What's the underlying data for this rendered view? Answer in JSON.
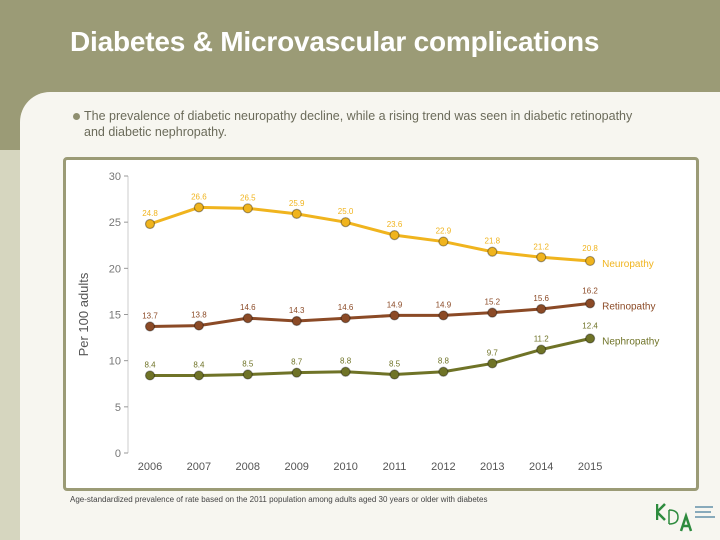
{
  "slide": {
    "title": "Diabetes & Microvascular complications",
    "bullet": "The prevalence of diabetic neuropathy decline, while a rising trend was seen in diabetic retinopathy and diabetic nephropathy.",
    "footnote": "Age-standardized prevalence of rate based on the 2011 population among adults aged 30 years or older with diabetes",
    "logo_text": "KDA Korean Diabetes Association"
  },
  "chart_data": {
    "type": "line",
    "ylabel": "Per 100 adults",
    "xlabel": "",
    "ylim": [
      0,
      30
    ],
    "yticks": [
      "0",
      "5",
      "10",
      "15",
      "20",
      "25",
      "30"
    ],
    "categories": [
      "2006",
      "2007",
      "2008",
      "2009",
      "2010",
      "2011",
      "2012",
      "2013",
      "2014",
      "2015"
    ],
    "grid": false,
    "legend": "inline-right",
    "series": [
      {
        "name": "Neuropathy",
        "color": "#f0b41e",
        "values": [
          24.8,
          26.6,
          26.5,
          25.9,
          25.0,
          23.6,
          22.9,
          21.8,
          21.2,
          20.8
        ]
      },
      {
        "name": "Retinopathy",
        "color": "#8b4a26",
        "values": [
          13.7,
          13.8,
          14.6,
          14.3,
          14.6,
          14.9,
          14.9,
          15.2,
          15.6,
          16.2
        ]
      },
      {
        "name": "Nephropathy",
        "color": "#6f7327",
        "values": [
          8.4,
          8.4,
          8.5,
          8.7,
          8.8,
          8.5,
          8.8,
          9.7,
          11.2,
          12.4
        ]
      }
    ]
  }
}
